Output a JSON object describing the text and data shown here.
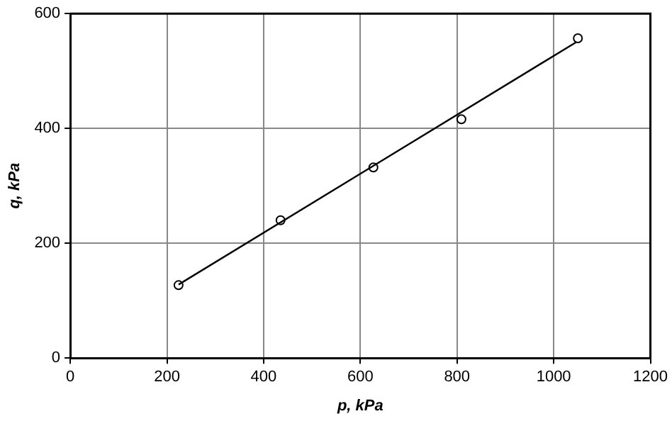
{
  "chart_data": {
    "type": "scatter",
    "xlabel": "p, kPa",
    "ylabel": "q, kPa",
    "xlim": [
      0,
      1200
    ],
    "ylim": [
      0,
      600
    ],
    "xticks": [
      0,
      200,
      400,
      600,
      800,
      1000,
      1200
    ],
    "yticks": [
      0,
      200,
      400,
      600
    ],
    "grid": true,
    "legend": false,
    "series": [
      {
        "color": "#000000",
        "marker": "circle",
        "x": [
          224,
          435,
          627,
          809,
          1050
        ],
        "values": [
          127,
          240,
          332,
          416,
          557
        ]
      },
      {
        "type": "line",
        "color": "#000000",
        "marker": "none",
        "x": [
          224,
          1046
        ],
        "values": [
          128,
          550
        ]
      }
    ]
  }
}
